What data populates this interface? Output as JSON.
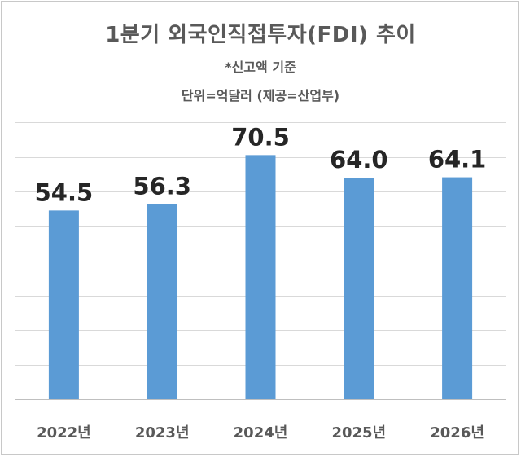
{
  "chart_data": {
    "type": "bar",
    "title": "1분기 외국인직접투자(FDI) 추이",
    "subtitles": [
      "*신고액 기준",
      "단위=억달러 (제공=산업부)"
    ],
    "categories": [
      "2022년",
      "2023년",
      "2024년",
      "2025년",
      "2026년"
    ],
    "values": [
      54.5,
      56.3,
      70.5,
      64.0,
      64.1
    ],
    "value_labels": [
      "54.5",
      "56.3",
      "70.5",
      "64.0",
      "64.1"
    ],
    "ylim": [
      0,
      80
    ],
    "grid": true,
    "bar_color": "#5b9bd5",
    "grid_color": "#d9d9d9",
    "text_color": "#595959",
    "label_color": "#262626"
  }
}
